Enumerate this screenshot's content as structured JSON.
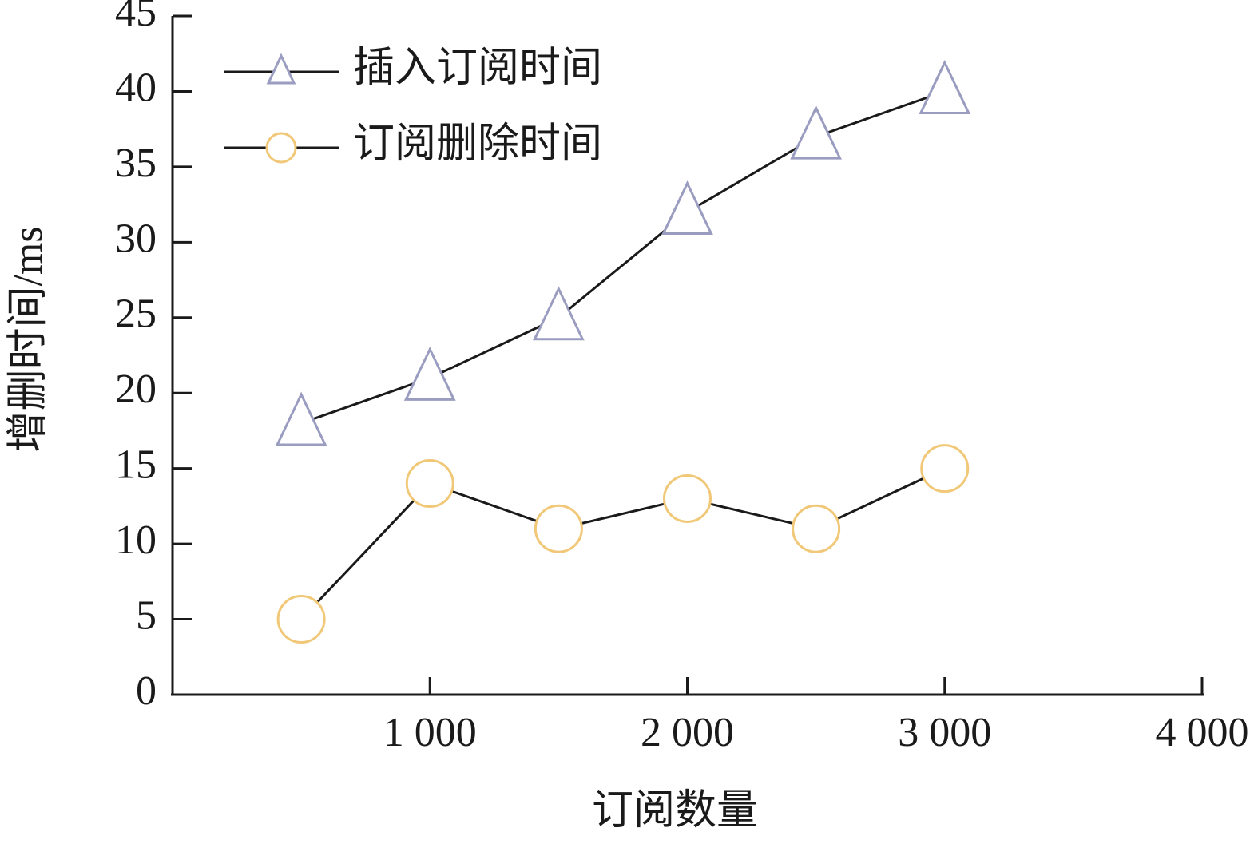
{
  "chart_data": {
    "type": "line",
    "x_label": "订阅数量",
    "y_label": "增删时间/ms",
    "x": [
      500,
      1000,
      1500,
      2000,
      2500,
      3000
    ],
    "series": [
      {
        "name": "插入订阅时间",
        "color": "#9a9cc0",
        "marker": "triangle",
        "values": [
          18,
          21,
          25,
          32,
          37,
          40
        ]
      },
      {
        "name": "订阅删除时间",
        "color": "#f0c878",
        "marker": "circle",
        "values": [
          5,
          14,
          11,
          13,
          11,
          15
        ]
      }
    ],
    "line_color": "#1a1a1a",
    "xlim": [
      0,
      4000
    ],
    "xticks": [
      {
        "value": 1000,
        "label": "1 000"
      },
      {
        "value": 2000,
        "label": "2 000"
      },
      {
        "value": 3000,
        "label": "3 000"
      },
      {
        "value": 4000,
        "label": "4 000"
      }
    ],
    "ylim": [
      0,
      45
    ],
    "yticks": [
      0,
      5,
      10,
      15,
      20,
      25,
      30,
      35,
      40,
      45
    ],
    "grid": false,
    "legend_position": "upper-left"
  }
}
